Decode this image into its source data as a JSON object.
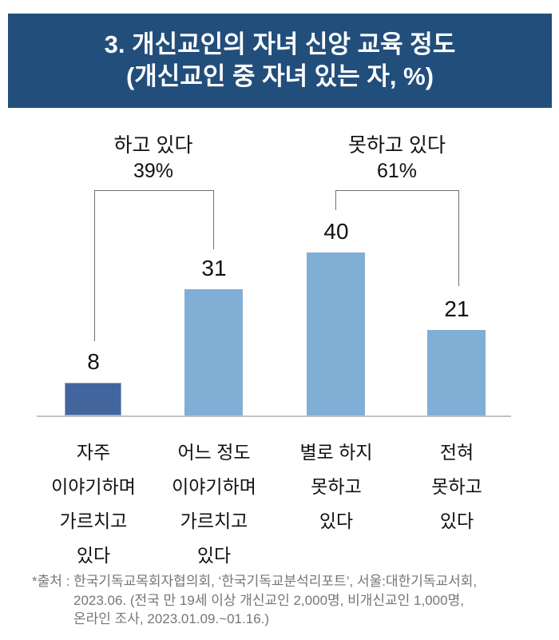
{
  "colors": {
    "banner_bg": "#224e7c",
    "banner_text": "#ffffff",
    "bar_dark": "#43659e",
    "bar_light": "#81aed5",
    "axis_line": "#c2c2c2",
    "bracket_line": "#6f6f6f",
    "label_text": "#111111",
    "footer_text": "#767676",
    "background": "#ffffff"
  },
  "header": {
    "title_line1": "3. 개신교인의 자녀 신앙 교육 정도",
    "title_line2": "(개신교인 중 자녀 있는 자, %)"
  },
  "chart_data": {
    "type": "bar",
    "title": "3. 개신교인의 자녀 신앙 교육 정도",
    "subtitle": "(개신교인 중 자녀 있는 자, %)",
    "unit": "%",
    "categories": [
      "자주 이야기하며 가르치고 있다",
      "어느 정도 이야기하며 가르치고 있다",
      "별로 하지 못하고 있다",
      "전혀 못하고 있다"
    ],
    "categories_lines": [
      [
        "자주",
        "이야기하며",
        "가르치고",
        "있다"
      ],
      [
        "어느 정도",
        "이야기하며",
        "가르치고",
        "있다"
      ],
      [
        "별로 하지",
        "못하고",
        "있다"
      ],
      [
        "전혀",
        "못하고",
        "있다"
      ]
    ],
    "values": [
      8,
      31,
      40,
      21
    ],
    "bar_colors": [
      "#43659e",
      "#81aed5",
      "#81aed5",
      "#81aed5"
    ],
    "groups": [
      {
        "label": "하고 있다",
        "percent": "39%",
        "bar_indexes": [
          0,
          1
        ]
      },
      {
        "label": "못하고 있다",
        "percent": "61%",
        "bar_indexes": [
          2,
          3
        ]
      }
    ],
    "ylim": [
      0,
      45
    ],
    "grid": false,
    "legend": false
  },
  "footer": {
    "line1": "*출처 : 한국기독교목회자협의회, ‘한국기독교분석리포트’, 서울:대한기독교서회,",
    "line2": "2023.06. (전국 만 19세 이상 개신교인 2,000명, 비개신교인 1,000명,",
    "line3": "온라인 조사, 2023.01.09.~01.16.)"
  }
}
